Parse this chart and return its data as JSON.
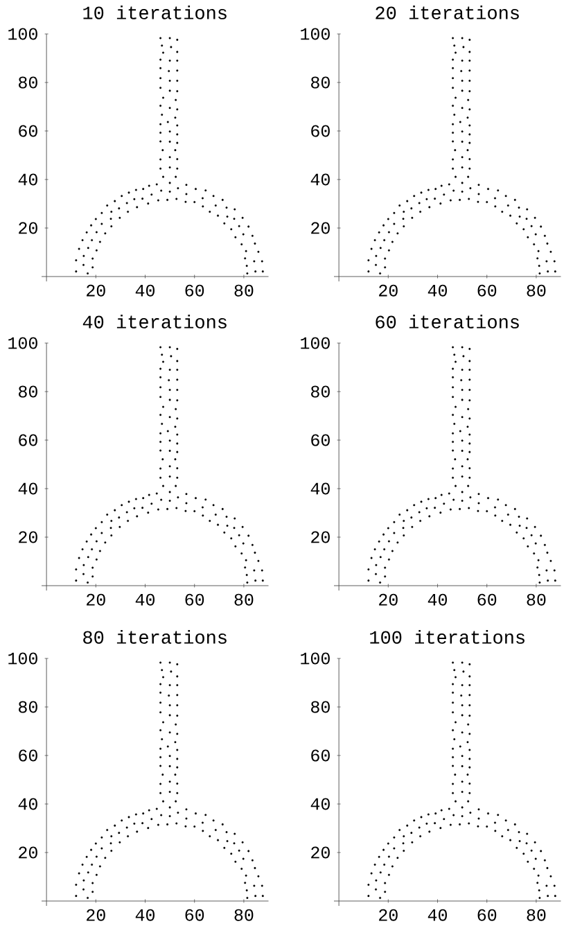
{
  "chart_data": [
    {
      "type": "scatter",
      "title": "10 iterations",
      "color": "#000000",
      "marker": "circle",
      "xlim": [
        -2,
        90
      ],
      "ylim": [
        -2,
        100
      ],
      "xticks": [
        20,
        40,
        60,
        80
      ],
      "yticks": [
        20,
        40,
        60,
        80,
        100
      ],
      "x": [
        12.0,
        16.7,
        15.0,
        18.7,
        12.0,
        15.1,
        18.7,
        13.2,
        16.9,
        20.3,
        14.6,
        18.4,
        21.7,
        16.3,
        20.3,
        23.8,
        18.1,
        22.4,
        26.3,
        20.0,
        26.1,
        29.7,
        22.4,
        26.3,
        29.4,
        33.0,
        24.6,
        27.7,
        32.6,
        36.7,
        30.5,
        35.6,
        38.9,
        41.2,
        33.4,
        36.3,
        39.2,
        42.6,
        41.6,
        44.7,
        45.3,
        46.5,
        49.0,
        50.0,
        50.0,
        52.7,
        53.3,
        56.4,
        56.7,
        56.7,
        60.0,
        60.5,
        63.3,
        63.4,
        64.5,
        66.2,
        67.7,
        68.6,
        69.5,
        71.4,
        72.1,
        73.3,
        73.0,
        74.9,
        76.1,
        76.3,
        76.6,
        78.1,
        79.5,
        79.1,
        79.8,
        81.9,
        80.9,
        83.5,
        80.5,
        84.5,
        81.2,
        85.9,
        81.4,
        84.2,
        84.7,
        87.4,
        87.7,
        46.2,
        46.8,
        47.3,
        46.2,
        46.2,
        46.2,
        46.2,
        47.3,
        46.2,
        46.8,
        46.2,
        46.2,
        46.2,
        47.1,
        46.2,
        46.2,
        47.3,
        50.0,
        50.5,
        50.0,
        49.6,
        50.0,
        50.0,
        50.0,
        49.2,
        50.0,
        50.0,
        50.0,
        50.0,
        53.0,
        53.0,
        53.0,
        53.0,
        53.0,
        53.0,
        52.4,
        53.0,
        52.2,
        53.0,
        53.0,
        53.0,
        52.2,
        53.0,
        53.0,
        52.4
      ],
      "values": [
        2.1,
        1.3,
        4.8,
        3.8,
        6.7,
        8.5,
        7.4,
        11.4,
        11.8,
        10.8,
        15.0,
        15.0,
        14.3,
        18.2,
        18.3,
        17.8,
        21.1,
        21.7,
        20.7,
        23.7,
        23.8,
        24.2,
        26.2,
        26.7,
        28.1,
        26.7,
        29.3,
        31.1,
        30.3,
        28.6,
        33.2,
        31.9,
        32.1,
        30.1,
        34.6,
        35.7,
        36.1,
        33.8,
        37.4,
        38.0,
        31.4,
        35.4,
        31.6,
        35.0,
        38.6,
        32.0,
        36.4,
        30.8,
        34.0,
        37.8,
        30.7,
        36.1,
        32.3,
        28.9,
        35.5,
        26.7,
        33.2,
        29.3,
        25.1,
        31.6,
        21.9,
        24.7,
        28.4,
        19.5,
        23.8,
        27.7,
        16.2,
        20.8,
        24.2,
        13.3,
        17.4,
        20.6,
        10.5,
        16.8,
        7.5,
        13.6,
        4.4,
        10.2,
        1.3,
        6.3,
        2.1,
        6.3,
        2.1,
        98.3,
        95.2,
        92.3,
        89.4,
        85.9,
        81.8,
        77.8,
        73.7,
        70.4,
        66.7,
        62.8,
        59.3,
        55.7,
        52.1,
        48.3,
        44.5,
        41.1,
        98.3,
        94.6,
        89.0,
        84.7,
        80.7,
        76.6,
        69.5,
        63.7,
        59.8,
        55.6,
        49.2,
        45.0,
        97.6,
        92.6,
        89.0,
        84.9,
        80.7,
        76.4,
        72.8,
        68.9,
        65.5,
        62.3,
        58.6,
        55.1,
        52.1,
        48.4,
        44.5,
        41.1
      ]
    },
    {
      "type": "scatter",
      "title": "20 iterations",
      "color": "#000000",
      "marker": "circle",
      "xlim": [
        -2,
        90
      ],
      "ylim": [
        -2,
        100
      ],
      "xticks": [
        20,
        40,
        60,
        80
      ],
      "yticks": [
        20,
        40,
        60,
        80,
        100
      ],
      "x": [
        12.0,
        16.7,
        15.0,
        18.7,
        12.0,
        15.1,
        18.7,
        13.2,
        16.9,
        20.3,
        14.6,
        18.4,
        21.7,
        16.3,
        20.3,
        23.8,
        18.1,
        22.4,
        26.3,
        20.0,
        26.1,
        29.7,
        22.4,
        26.3,
        29.4,
        33.0,
        24.6,
        27.7,
        32.6,
        36.7,
        30.5,
        35.6,
        38.9,
        41.2,
        33.4,
        36.3,
        39.2,
        42.6,
        41.6,
        44.7,
        45.3,
        46.5,
        49.0,
        50.0,
        50.0,
        52.7,
        53.3,
        56.4,
        56.7,
        56.7,
        60.0,
        60.5,
        63.3,
        63.4,
        64.5,
        66.2,
        67.7,
        68.6,
        69.5,
        71.4,
        72.1,
        73.3,
        73.0,
        74.9,
        76.1,
        76.3,
        76.6,
        78.1,
        79.5,
        79.1,
        79.8,
        81.9,
        80.9,
        83.5,
        80.5,
        84.5,
        81.2,
        85.9,
        81.4,
        84.2,
        84.7,
        87.4,
        87.7,
        46.2,
        46.8,
        47.3,
        46.2,
        46.2,
        46.2,
        46.2,
        47.3,
        46.2,
        46.8,
        46.2,
        46.2,
        46.2,
        47.1,
        46.2,
        46.2,
        47.3,
        50.0,
        50.5,
        50.0,
        49.6,
        50.0,
        50.0,
        50.0,
        49.2,
        50.0,
        50.0,
        50.0,
        50.0,
        53.0,
        53.0,
        53.0,
        53.0,
        53.0,
        53.0,
        52.4,
        53.0,
        52.2,
        53.0,
        53.0,
        53.0,
        52.2,
        53.0,
        53.0,
        52.4
      ],
      "values": [
        2.1,
        1.3,
        4.8,
        3.8,
        6.7,
        8.5,
        7.4,
        11.4,
        11.8,
        10.8,
        15.0,
        15.0,
        14.3,
        18.2,
        18.3,
        17.8,
        21.1,
        21.7,
        20.7,
        23.7,
        23.8,
        24.2,
        26.2,
        26.7,
        28.1,
        26.7,
        29.3,
        31.1,
        30.3,
        28.6,
        33.2,
        31.9,
        32.1,
        30.1,
        34.6,
        35.7,
        36.1,
        33.8,
        37.4,
        38.0,
        31.4,
        35.4,
        31.6,
        35.0,
        38.6,
        32.0,
        36.4,
        30.8,
        34.0,
        37.8,
        30.7,
        36.1,
        32.3,
        28.9,
        35.5,
        26.7,
        33.2,
        29.3,
        25.1,
        31.6,
        21.9,
        24.7,
        28.4,
        19.5,
        23.8,
        27.7,
        16.2,
        20.8,
        24.2,
        13.3,
        17.4,
        20.6,
        10.5,
        16.8,
        7.5,
        13.6,
        4.4,
        10.2,
        1.3,
        6.3,
        2.1,
        6.3,
        2.1,
        98.3,
        95.2,
        92.3,
        89.4,
        85.9,
        81.8,
        77.8,
        73.7,
        70.4,
        66.7,
        62.8,
        59.3,
        55.7,
        52.1,
        48.3,
        44.5,
        41.1,
        98.3,
        94.6,
        89.0,
        84.7,
        80.7,
        76.6,
        69.5,
        63.7,
        59.8,
        55.6,
        49.2,
        45.0,
        97.6,
        92.6,
        89.0,
        84.9,
        80.7,
        76.4,
        72.8,
        68.9,
        65.5,
        62.3,
        58.6,
        55.1,
        52.1,
        48.4,
        44.5,
        41.1
      ]
    },
    {
      "type": "scatter",
      "title": "40 iterations",
      "color": "#000000",
      "marker": "circle",
      "xlim": [
        -2,
        90
      ],
      "ylim": [
        -2,
        100
      ],
      "xticks": [
        20,
        40,
        60,
        80
      ],
      "yticks": [
        20,
        40,
        60,
        80,
        100
      ],
      "x": [
        12.0,
        16.7,
        15.0,
        18.7,
        12.0,
        15.1,
        18.7,
        13.2,
        16.9,
        20.3,
        14.6,
        18.4,
        21.7,
        16.3,
        20.3,
        23.8,
        18.1,
        22.4,
        26.3,
        20.0,
        26.1,
        29.7,
        22.4,
        26.3,
        29.4,
        33.0,
        24.6,
        27.7,
        32.6,
        36.7,
        30.5,
        35.6,
        38.9,
        41.2,
        33.4,
        36.3,
        39.2,
        42.6,
        41.6,
        44.7,
        45.3,
        46.5,
        49.0,
        50.0,
        50.0,
        52.7,
        53.3,
        56.4,
        56.7,
        56.7,
        60.0,
        60.5,
        63.3,
        63.4,
        64.5,
        66.2,
        67.7,
        68.6,
        69.5,
        71.4,
        72.1,
        73.3,
        73.0,
        74.9,
        76.1,
        76.3,
        76.6,
        78.1,
        79.5,
        79.1,
        79.8,
        81.9,
        80.9,
        83.5,
        80.5,
        84.5,
        81.2,
        85.9,
        81.4,
        84.2,
        84.7,
        87.4,
        87.7,
        46.2,
        46.8,
        47.3,
        46.2,
        46.2,
        46.2,
        46.2,
        47.3,
        46.2,
        46.8,
        46.2,
        46.2,
        46.2,
        47.1,
        46.2,
        46.2,
        47.3,
        50.0,
        50.5,
        50.0,
        49.6,
        50.0,
        50.0,
        50.0,
        49.2,
        50.0,
        50.0,
        50.0,
        50.0,
        53.0,
        53.0,
        53.0,
        53.0,
        53.0,
        53.0,
        52.4,
        53.0,
        52.2,
        53.0,
        53.0,
        53.0,
        52.2,
        53.0,
        53.0,
        52.4
      ],
      "values": [
        2.1,
        1.3,
        4.8,
        3.8,
        6.7,
        8.5,
        7.4,
        11.4,
        11.8,
        10.8,
        15.0,
        15.0,
        14.3,
        18.2,
        18.3,
        17.8,
        21.1,
        21.7,
        20.7,
        23.7,
        23.8,
        24.2,
        26.2,
        26.7,
        28.1,
        26.7,
        29.3,
        31.1,
        30.3,
        28.6,
        33.2,
        31.9,
        32.1,
        30.1,
        34.6,
        35.7,
        36.1,
        33.8,
        37.4,
        38.0,
        31.4,
        35.4,
        31.6,
        35.0,
        38.6,
        32.0,
        36.4,
        30.8,
        34.0,
        37.8,
        30.7,
        36.1,
        32.3,
        28.9,
        35.5,
        26.7,
        33.2,
        29.3,
        25.1,
        31.6,
        21.9,
        24.7,
        28.4,
        19.5,
        23.8,
        27.7,
        16.2,
        20.8,
        24.2,
        13.3,
        17.4,
        20.6,
        10.5,
        16.8,
        7.5,
        13.6,
        4.4,
        10.2,
        1.3,
        6.3,
        2.1,
        6.3,
        2.1,
        98.3,
        95.2,
        92.3,
        89.4,
        85.9,
        81.8,
        77.8,
        73.7,
        70.4,
        66.7,
        62.8,
        59.3,
        55.7,
        52.1,
        48.3,
        44.5,
        41.1,
        98.3,
        94.6,
        89.0,
        84.7,
        80.7,
        76.6,
        69.5,
        63.7,
        59.8,
        55.6,
        49.2,
        45.0,
        97.6,
        92.6,
        89.0,
        84.9,
        80.7,
        76.4,
        72.8,
        68.9,
        65.5,
        62.3,
        58.6,
        55.1,
        52.1,
        48.4,
        44.5,
        41.1
      ]
    },
    {
      "type": "scatter",
      "title": "60 iterations",
      "color": "#000000",
      "marker": "circle",
      "xlim": [
        -2,
        90
      ],
      "ylim": [
        -2,
        100
      ],
      "xticks": [
        20,
        40,
        60,
        80
      ],
      "yticks": [
        20,
        40,
        60,
        80,
        100
      ],
      "x": [
        12.0,
        16.7,
        15.0,
        18.7,
        12.0,
        15.1,
        18.7,
        13.2,
        16.9,
        20.3,
        14.6,
        18.4,
        21.7,
        16.3,
        20.3,
        23.8,
        18.1,
        22.4,
        26.3,
        20.0,
        26.1,
        29.7,
        22.4,
        26.3,
        29.4,
        33.0,
        24.6,
        27.7,
        32.6,
        36.7,
        30.5,
        35.6,
        38.9,
        41.2,
        33.4,
        36.3,
        39.2,
        42.6,
        41.6,
        44.7,
        45.3,
        46.5,
        49.0,
        50.0,
        50.0,
        52.7,
        53.3,
        56.4,
        56.7,
        56.7,
        60.0,
        60.5,
        63.3,
        63.4,
        64.5,
        66.2,
        67.7,
        68.6,
        69.5,
        71.4,
        72.1,
        73.3,
        73.0,
        74.9,
        76.1,
        76.3,
        76.6,
        78.1,
        79.5,
        79.1,
        79.8,
        81.9,
        80.9,
        83.5,
        80.5,
        84.5,
        81.2,
        85.9,
        81.4,
        84.2,
        84.7,
        87.4,
        87.7,
        46.2,
        46.8,
        47.3,
        46.2,
        46.2,
        46.2,
        46.2,
        47.3,
        46.2,
        46.8,
        46.2,
        46.2,
        46.2,
        47.1,
        46.2,
        46.2,
        47.3,
        50.0,
        50.5,
        50.0,
        49.6,
        50.0,
        50.0,
        50.0,
        49.2,
        50.0,
        50.0,
        50.0,
        50.0,
        53.0,
        53.0,
        53.0,
        53.0,
        53.0,
        53.0,
        52.4,
        53.0,
        52.2,
        53.0,
        53.0,
        53.0,
        52.2,
        53.0,
        53.0,
        52.4
      ],
      "values": [
        2.1,
        1.3,
        4.8,
        3.8,
        6.7,
        8.5,
        7.4,
        11.4,
        11.8,
        10.8,
        15.0,
        15.0,
        14.3,
        18.2,
        18.3,
        17.8,
        21.1,
        21.7,
        20.7,
        23.7,
        23.8,
        24.2,
        26.2,
        26.7,
        28.1,
        26.7,
        29.3,
        31.1,
        30.3,
        28.6,
        33.2,
        31.9,
        32.1,
        30.1,
        34.6,
        35.7,
        36.1,
        33.8,
        37.4,
        38.0,
        31.4,
        35.4,
        31.6,
        35.0,
        38.6,
        32.0,
        36.4,
        30.8,
        34.0,
        37.8,
        30.7,
        36.1,
        32.3,
        28.9,
        35.5,
        26.7,
        33.2,
        29.3,
        25.1,
        31.6,
        21.9,
        24.7,
        28.4,
        19.5,
        23.8,
        27.7,
        16.2,
        20.8,
        24.2,
        13.3,
        17.4,
        20.6,
        10.5,
        16.8,
        7.5,
        13.6,
        4.4,
        10.2,
        1.3,
        6.3,
        2.1,
        6.3,
        2.1,
        98.3,
        95.2,
        92.3,
        89.4,
        85.9,
        81.8,
        77.8,
        73.7,
        70.4,
        66.7,
        62.8,
        59.3,
        55.7,
        52.1,
        48.3,
        44.5,
        41.1,
        98.3,
        94.6,
        89.0,
        84.7,
        80.7,
        76.6,
        69.5,
        63.7,
        59.8,
        55.6,
        49.2,
        45.0,
        97.6,
        92.6,
        89.0,
        84.9,
        80.7,
        76.4,
        72.8,
        68.9,
        65.5,
        62.3,
        58.6,
        55.1,
        52.1,
        48.4,
        44.5,
        41.1
      ]
    },
    {
      "type": "scatter",
      "title": "80 iterations",
      "color": "#000000",
      "marker": "circle",
      "xlim": [
        -2,
        90
      ],
      "ylim": [
        -2,
        100
      ],
      "xticks": [
        20,
        40,
        60,
        80
      ],
      "yticks": [
        20,
        40,
        60,
        80,
        100
      ],
      "x": [
        12.0,
        16.7,
        15.0,
        18.7,
        12.0,
        15.1,
        18.7,
        13.2,
        16.9,
        20.3,
        14.6,
        18.4,
        21.7,
        16.3,
        20.3,
        23.8,
        18.1,
        22.4,
        26.3,
        20.0,
        26.1,
        29.7,
        22.4,
        26.3,
        29.4,
        33.0,
        24.6,
        27.7,
        32.6,
        36.7,
        30.5,
        35.6,
        38.9,
        41.2,
        33.4,
        36.3,
        39.2,
        42.6,
        41.6,
        44.7,
        45.3,
        46.5,
        49.0,
        50.0,
        50.0,
        52.7,
        53.3,
        56.4,
        56.7,
        56.7,
        60.0,
        60.5,
        63.3,
        63.4,
        64.5,
        66.2,
        67.7,
        68.6,
        69.5,
        71.4,
        72.1,
        73.3,
        73.0,
        74.9,
        76.1,
        76.3,
        76.6,
        78.1,
        79.5,
        79.1,
        79.8,
        81.9,
        80.9,
        83.5,
        80.5,
        84.5,
        81.2,
        85.9,
        81.4,
        84.2,
        84.7,
        87.4,
        87.7,
        46.2,
        46.8,
        47.3,
        46.2,
        46.2,
        46.2,
        46.2,
        47.3,
        46.2,
        46.8,
        46.2,
        46.2,
        46.2,
        47.1,
        46.2,
        46.2,
        47.3,
        50.0,
        50.5,
        50.0,
        49.6,
        50.0,
        50.0,
        50.0,
        49.2,
        50.0,
        50.0,
        50.0,
        50.0,
        53.0,
        53.0,
        53.0,
        53.0,
        53.0,
        53.0,
        52.4,
        53.0,
        52.2,
        53.0,
        53.0,
        53.0,
        52.2,
        53.0,
        53.0,
        52.4
      ],
      "values": [
        2.1,
        1.3,
        4.8,
        3.8,
        6.7,
        8.5,
        7.4,
        11.4,
        11.8,
        10.8,
        15.0,
        15.0,
        14.3,
        18.2,
        18.3,
        17.8,
        21.1,
        21.7,
        20.7,
        23.7,
        23.8,
        24.2,
        26.2,
        26.7,
        28.1,
        26.7,
        29.3,
        31.1,
        30.3,
        28.6,
        33.2,
        31.9,
        32.1,
        30.1,
        34.6,
        35.7,
        36.1,
        33.8,
        37.4,
        38.0,
        31.4,
        35.4,
        31.6,
        35.0,
        38.6,
        32.0,
        36.4,
        30.8,
        34.0,
        37.8,
        30.7,
        36.1,
        32.3,
        28.9,
        35.5,
        26.7,
        33.2,
        29.3,
        25.1,
        31.6,
        21.9,
        24.7,
        28.4,
        19.5,
        23.8,
        27.7,
        16.2,
        20.8,
        24.2,
        13.3,
        17.4,
        20.6,
        10.5,
        16.8,
        7.5,
        13.6,
        4.4,
        10.2,
        1.3,
        6.3,
        2.1,
        6.3,
        2.1,
        98.3,
        95.2,
        92.3,
        89.4,
        85.9,
        81.8,
        77.8,
        73.7,
        70.4,
        66.7,
        62.8,
        59.3,
        55.7,
        52.1,
        48.3,
        44.5,
        41.1,
        98.3,
        94.6,
        89.0,
        84.7,
        80.7,
        76.6,
        69.5,
        63.7,
        59.8,
        55.6,
        49.2,
        45.0,
        97.6,
        92.6,
        89.0,
        84.9,
        80.7,
        76.4,
        72.8,
        68.9,
        65.5,
        62.3,
        58.6,
        55.1,
        52.1,
        48.4,
        44.5,
        41.1
      ]
    },
    {
      "type": "scatter",
      "title": "100 iterations",
      "color": "#000000",
      "marker": "circle",
      "xlim": [
        -2,
        90
      ],
      "ylim": [
        -2,
        100
      ],
      "xticks": [
        20,
        40,
        60,
        80
      ],
      "yticks": [
        20,
        40,
        60,
        80,
        100
      ],
      "x": [
        12.0,
        16.7,
        15.0,
        18.7,
        12.0,
        15.1,
        18.7,
        13.2,
        16.9,
        20.3,
        14.6,
        18.4,
        21.7,
        16.3,
        20.3,
        23.8,
        18.1,
        22.4,
        26.3,
        20.0,
        26.1,
        29.7,
        22.4,
        26.3,
        29.4,
        33.0,
        24.6,
        27.7,
        32.6,
        36.7,
        30.5,
        35.6,
        38.9,
        41.2,
        33.4,
        36.3,
        39.2,
        42.6,
        41.6,
        44.7,
        45.3,
        46.5,
        49.0,
        50.0,
        50.0,
        52.7,
        53.3,
        56.4,
        56.7,
        56.7,
        60.0,
        60.5,
        63.3,
        63.4,
        64.5,
        66.2,
        67.7,
        68.6,
        69.5,
        71.4,
        72.1,
        73.3,
        73.0,
        74.9,
        76.1,
        76.3,
        76.6,
        78.1,
        79.5,
        79.1,
        79.8,
        81.9,
        80.9,
        83.5,
        80.5,
        84.5,
        81.2,
        85.9,
        81.4,
        84.2,
        84.7,
        87.4,
        87.7,
        46.2,
        46.8,
        47.3,
        46.2,
        46.2,
        46.2,
        46.2,
        47.3,
        46.2,
        46.8,
        46.2,
        46.2,
        46.2,
        47.1,
        46.2,
        46.2,
        47.3,
        50.0,
        50.5,
        50.0,
        49.6,
        50.0,
        50.0,
        50.0,
        49.2,
        50.0,
        50.0,
        50.0,
        50.0,
        53.0,
        53.0,
        53.0,
        53.0,
        53.0,
        53.0,
        52.4,
        53.0,
        52.2,
        53.0,
        53.0,
        53.0,
        52.2,
        53.0,
        53.0,
        52.4
      ],
      "values": [
        2.1,
        1.3,
        4.8,
        3.8,
        6.7,
        8.5,
        7.4,
        11.4,
        11.8,
        10.8,
        15.0,
        15.0,
        14.3,
        18.2,
        18.3,
        17.8,
        21.1,
        21.7,
        20.7,
        23.7,
        23.8,
        24.2,
        26.2,
        26.7,
        28.1,
        26.7,
        29.3,
        31.1,
        30.3,
        28.6,
        33.2,
        31.9,
        32.1,
        30.1,
        34.6,
        35.7,
        36.1,
        33.8,
        37.4,
        38.0,
        31.4,
        35.4,
        31.6,
        35.0,
        38.6,
        32.0,
        36.4,
        30.8,
        34.0,
        37.8,
        30.7,
        36.1,
        32.3,
        28.9,
        35.5,
        26.7,
        33.2,
        29.3,
        25.1,
        31.6,
        21.9,
        24.7,
        28.4,
        19.5,
        23.8,
        27.7,
        16.2,
        20.8,
        24.2,
        13.3,
        17.4,
        20.6,
        10.5,
        16.8,
        7.5,
        13.6,
        4.4,
        10.2,
        1.3,
        6.3,
        2.1,
        6.3,
        2.1,
        98.3,
        95.2,
        92.3,
        89.4,
        85.9,
        81.8,
        77.8,
        73.7,
        70.4,
        66.7,
        62.8,
        59.3,
        55.7,
        52.1,
        48.3,
        44.5,
        41.1,
        98.3,
        94.6,
        89.0,
        84.7,
        80.7,
        76.6,
        69.5,
        63.7,
        59.8,
        55.6,
        49.2,
        45.0,
        97.6,
        92.6,
        89.0,
        84.9,
        80.7,
        76.4,
        72.8,
        68.9,
        65.5,
        62.3,
        58.6,
        55.1,
        52.1,
        48.4,
        44.5,
        41.1
      ]
    }
  ]
}
